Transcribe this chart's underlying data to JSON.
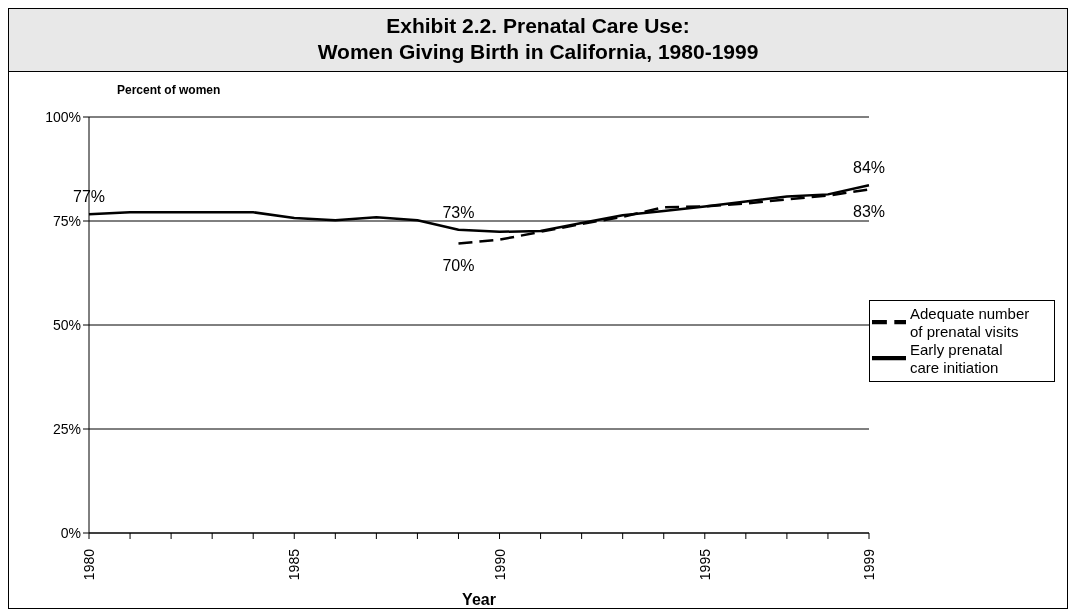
{
  "chart_data": {
    "type": "line",
    "title": "Exhibit 2.2.  Prenatal Care Use:\nWomen Giving Birth in California, 1980-1999",
    "xlabel": "Year",
    "ylabel": "Percent of women",
    "categories": [
      "1980",
      null,
      null,
      null,
      null,
      "1985",
      null,
      null,
      null,
      null,
      "1990",
      null,
      null,
      null,
      null,
      "1995",
      null,
      null,
      null,
      "1999"
    ],
    "series": [
      {
        "name": "Early prenatal care initiation",
        "color": "#000000",
        "line_style": "solid",
        "values": [
          76.6,
          77.1,
          77.1,
          77.1,
          77.1,
          75.7,
          75.2,
          75.9,
          75.2,
          72.9,
          72.4,
          72.6,
          74.5,
          76.4,
          77.4,
          78.5,
          79.7,
          80.9,
          81.4,
          83.6
        ],
        "value_labels": [
          "77%",
          null,
          null,
          null,
          null,
          null,
          null,
          null,
          null,
          "73%",
          null,
          null,
          null,
          null,
          null,
          null,
          null,
          null,
          null,
          "84%"
        ]
      },
      {
        "name": "Adequate number of prenatal visits",
        "color": "#000000",
        "line_style": "dashed",
        "values": [
          null,
          null,
          null,
          null,
          null,
          null,
          null,
          null,
          null,
          69.6,
          70.5,
          72.4,
          74.3,
          76.0,
          78.3,
          78.5,
          79.2,
          80.2,
          81.1,
          82.6
        ],
        "value_labels": [
          null,
          null,
          null,
          null,
          null,
          null,
          null,
          null,
          null,
          "70%",
          null,
          null,
          null,
          null,
          null,
          null,
          null,
          null,
          null,
          "83%"
        ]
      }
    ],
    "ylim": [
      0,
      100
    ],
    "yticks": [
      {
        "value": 0,
        "label": "0%"
      },
      {
        "value": 25,
        "label": "25%"
      },
      {
        "value": 50,
        "label": "50%"
      },
      {
        "value": 75,
        "label": "75%"
      },
      {
        "value": 100,
        "label": "100%"
      }
    ],
    "grid": "y",
    "legend": "right",
    "marker": "none"
  }
}
